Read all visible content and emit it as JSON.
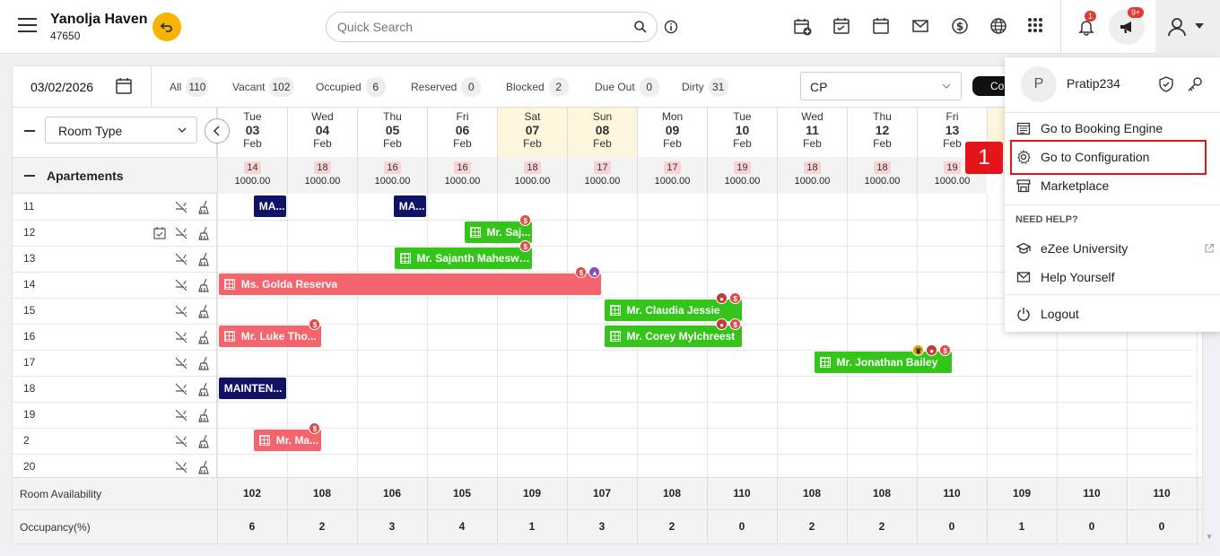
{
  "header": {
    "hotel_name": "Yanolja Haven",
    "hotel_code": "47650",
    "search_placeholder": "Quick Search",
    "bell_badge": "1",
    "megaphone_badge": "9+"
  },
  "filters": {
    "date": "03/02/2026",
    "stats": [
      {
        "label": "All",
        "count": "110"
      },
      {
        "label": "Vacant",
        "count": "102"
      },
      {
        "label": "Occupied",
        "count": "6"
      },
      {
        "label": "Reserved",
        "count": "0"
      },
      {
        "label": "Blocked",
        "count": "2"
      },
      {
        "label": "Due Out",
        "count": "0"
      },
      {
        "label": "Dirty",
        "count": "31"
      }
    ],
    "rate_plan": "CP",
    "co_button": "Co"
  },
  "grid": {
    "room_type_select": "Room Type",
    "group_name": "Apartements",
    "dates": [
      {
        "dow": "Tue",
        "day": "03",
        "mon": "Feb",
        "avail": "14",
        "rate": "1000.00"
      },
      {
        "dow": "Wed",
        "day": "04",
        "mon": "Feb",
        "avail": "18",
        "rate": "1000.00"
      },
      {
        "dow": "Thu",
        "day": "05",
        "mon": "Feb",
        "avail": "16",
        "rate": "1000.00"
      },
      {
        "dow": "Fri",
        "day": "06",
        "mon": "Feb",
        "avail": "16",
        "rate": "1000.00"
      },
      {
        "dow": "Sat",
        "day": "07",
        "mon": "Feb",
        "avail": "18",
        "rate": "1000.00"
      },
      {
        "dow": "Sun",
        "day": "08",
        "mon": "Feb",
        "avail": "17",
        "rate": "1000.00"
      },
      {
        "dow": "Mon",
        "day": "09",
        "mon": "Feb",
        "avail": "17",
        "rate": "1000.00"
      },
      {
        "dow": "Tue",
        "day": "10",
        "mon": "Feb",
        "avail": "19",
        "rate": "1000.00"
      },
      {
        "dow": "Wed",
        "day": "11",
        "mon": "Feb",
        "avail": "18",
        "rate": "1000.00"
      },
      {
        "dow": "Thu",
        "day": "12",
        "mon": "Feb",
        "avail": "18",
        "rate": "1000.00"
      },
      {
        "dow": "Fri",
        "day": "13",
        "mon": "Feb",
        "avail": "19",
        "rate": "1000.00"
      }
    ],
    "rooms": [
      "11",
      "12",
      "13",
      "14",
      "15",
      "16",
      "17",
      "18",
      "19",
      "2",
      "20"
    ],
    "bookings": [
      {
        "label": "MA...",
        "style": "navy"
      },
      {
        "label": "MA...",
        "style": "navy"
      },
      {
        "label": "Mr. Saj...",
        "style": "green"
      },
      {
        "label": "Mr. Sajanth Maheswa...",
        "style": "green"
      },
      {
        "label": "Ms. Golda Reserva",
        "style": "red"
      },
      {
        "label": "Mr. Claudia Jessie",
        "style": "green"
      },
      {
        "label": "Mr. Luke Tho...",
        "style": "red"
      },
      {
        "label": "Mr. Corey Mylchreest",
        "style": "green"
      },
      {
        "label": "Mr. Jonathan Bailey",
        "style": "green"
      },
      {
        "label": "MAINTEN...",
        "style": "navy"
      },
      {
        "label": "Mr. Ma...",
        "style": "red"
      }
    ],
    "dollar_mark": "$"
  },
  "footer": {
    "availability_label": "Room Availability",
    "availability": [
      "102",
      "108",
      "106",
      "105",
      "109",
      "107",
      "108",
      "110",
      "108",
      "108",
      "110",
      "109",
      "110",
      "110"
    ],
    "occupancy_label": "Occupancy(%)",
    "occupancy": [
      "6",
      "2",
      "3",
      "4",
      "1",
      "3",
      "2",
      "0",
      "2",
      "2",
      "0",
      "1",
      "0",
      "0"
    ]
  },
  "user_menu": {
    "avatar_letter": "P",
    "username": "Pratip234",
    "items": [
      "Go to Booking Engine",
      "Go to Configuration",
      "Marketplace"
    ],
    "help_header": "NEED HELP?",
    "help_items": [
      "eZee University",
      "Help Yourself"
    ],
    "logout": "Logout"
  },
  "annotation": {
    "step": "1"
  }
}
